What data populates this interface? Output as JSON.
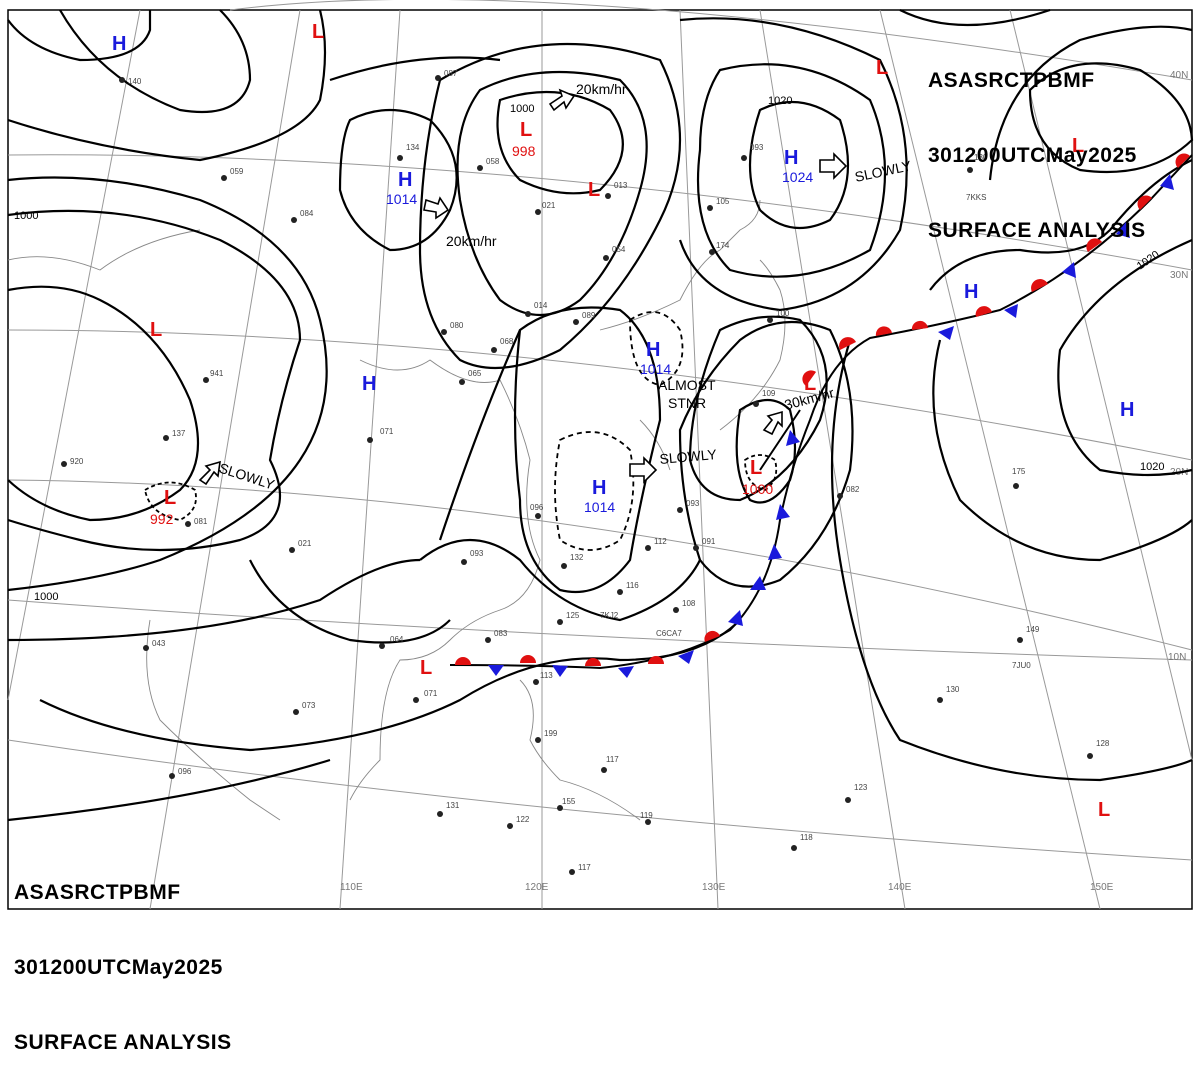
{
  "header": {
    "line1": [
      "ASAS",
      "RCTP",
      "BMF"
    ],
    "line2": [
      "301200UTC",
      "May",
      "2025"
    ],
    "line3": "SURFACE ANALYSIS"
  },
  "colors": {
    "high": "#1a1adc",
    "low": "#e01010",
    "front_warm": "#e01010",
    "front_cold": "#1a1adc",
    "isobar": "#000000",
    "grid": "#999999",
    "coast": "#888888"
  },
  "lat_labels": [
    "40N",
    "30N",
    "20N",
    "10N"
  ],
  "lon_labels": [
    "110E",
    "120E",
    "130E",
    "140E",
    "150E"
  ],
  "isobar_labels": [
    "1000",
    "1000",
    "1000",
    "1020",
    "1020",
    "1020",
    "1020"
  ],
  "centers": [
    {
      "type": "H",
      "value": ""
    },
    {
      "type": "L",
      "value": ""
    },
    {
      "type": "L",
      "value": ""
    },
    {
      "type": "L",
      "value": "998"
    },
    {
      "type": "L",
      "value": ""
    },
    {
      "type": "H",
      "value": "1014"
    },
    {
      "type": "H",
      "value": "1024"
    },
    {
      "type": "L",
      "value": ""
    },
    {
      "type": "H",
      "value": ""
    },
    {
      "type": "L",
      "value": "992"
    },
    {
      "type": "H",
      "value": ""
    },
    {
      "type": "H",
      "value": "1014"
    },
    {
      "type": "H",
      "value": "1014"
    },
    {
      "type": "L",
      "value": ""
    },
    {
      "type": "L",
      "value": "1000"
    },
    {
      "type": "H",
      "value": ""
    },
    {
      "type": "L",
      "value": ""
    },
    {
      "type": "L",
      "value": ""
    }
  ],
  "motions": [
    "20km/hr",
    "20km/hr",
    "SLOWLY",
    "SLOWLY",
    "SLOWLY",
    "30km/hr"
  ],
  "annotations": [
    "ALMOST",
    "STNR"
  ],
  "station_codes": [
    "7KKS",
    "7KJ2",
    "C6CA7",
    "7JU0"
  ],
  "station_values": [
    "140",
    "087",
    "134",
    "059",
    "084",
    "058",
    "021",
    "013",
    "054",
    "014",
    "089",
    "080",
    "068",
    "065",
    "105",
    "174",
    "093",
    "130",
    "100",
    "109",
    "082",
    "175",
    "149",
    "130",
    "128",
    "123",
    "118",
    "117",
    "155",
    "122",
    "131",
    "096",
    "073",
    "071",
    "043",
    "920",
    "137",
    "941",
    "071",
    "081",
    "021",
    "064",
    "096",
    "093",
    "132",
    "125",
    "116",
    "108",
    "112",
    "093",
    "091",
    "083",
    "113",
    "119",
    "117",
    "199"
  ]
}
